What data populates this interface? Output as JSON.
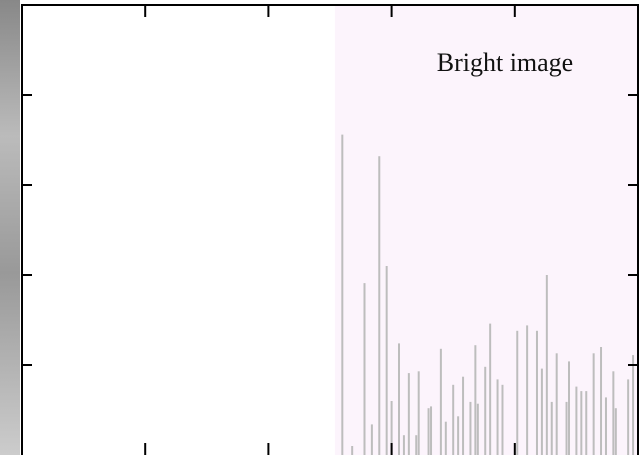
{
  "chart_data": {
    "type": "bar",
    "annotation": "Bright image",
    "x": [
      130,
      134,
      139,
      142,
      145,
      148,
      150,
      153,
      155,
      157,
      160,
      161,
      165,
      166,
      170,
      172,
      175,
      177,
      179,
      182,
      184,
      185,
      188,
      190,
      193,
      195,
      201,
      205,
      209,
      211,
      213,
      215,
      217,
      221,
      222,
      225,
      227,
      229,
      232,
      235,
      237,
      240,
      241,
      246,
      248
    ],
    "values": [
      3.56,
      0.1,
      1.91,
      0.34,
      3.32,
      2.1,
      0.6,
      1.24,
      0.22,
      0.91,
      0.22,
      0.93,
      0.52,
      0.54,
      1.18,
      0.37,
      0.78,
      0.43,
      0.87,
      0.59,
      1.22,
      0.57,
      0.98,
      1.46,
      0.84,
      0.78,
      1.38,
      1.44,
      1.38,
      0.96,
      2.0,
      0.59,
      1.13,
      0.59,
      1.04,
      0.76,
      0.71,
      0.71,
      1.13,
      1.2,
      0.64,
      0.93,
      0.52,
      0.84,
      1.11
    ],
    "color": "#bdbdbd",
    "shaded_xlim": [
      127,
      250
    ],
    "shade_color": "#fcf4fc",
    "xlim": [
      0,
      250
    ],
    "xticks": [
      50,
      100,
      150,
      200
    ],
    "ylim": [
      0,
      5
    ],
    "yticks": [
      1,
      2,
      3,
      4
    ]
  }
}
